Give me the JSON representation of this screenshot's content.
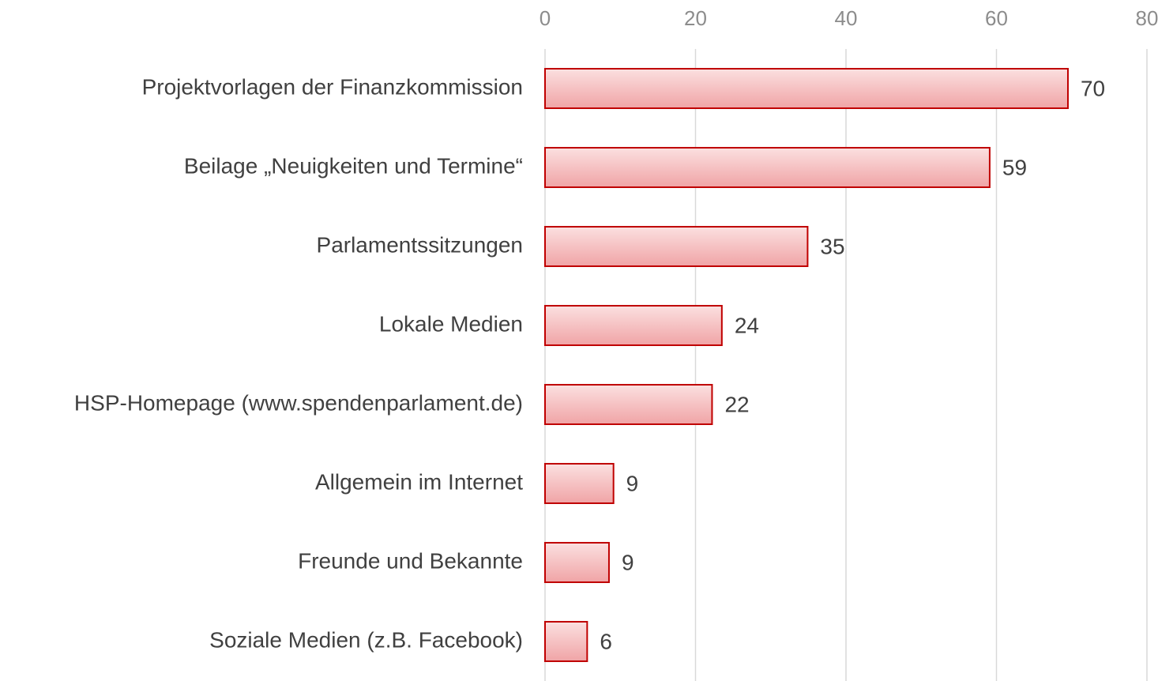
{
  "chart_data": {
    "type": "bar",
    "orientation": "horizontal",
    "categories": [
      "Projektvorlagen der Finanzkommission",
      "Beilage „Neuigkeiten und Termine“",
      "Parlamentssitzungen",
      "Lokale Medien",
      "HSP-Homepage (www.spendenparlament.de)",
      "Allgemein im Internet",
      "Freunde und Bekannte",
      "Soziale Medien (z.B. Facebook)"
    ],
    "values": [
      69.5,
      59.1,
      34.9,
      23.5,
      22.2,
      9.1,
      8.5,
      5.6
    ],
    "value_labels": [
      "70",
      "59",
      "35",
      "24",
      "22",
      "9",
      "9",
      "6"
    ],
    "color": "#c00000",
    "xlim": [
      0,
      80
    ],
    "xticks": [
      0,
      20,
      40,
      60,
      80
    ],
    "grid": true
  }
}
